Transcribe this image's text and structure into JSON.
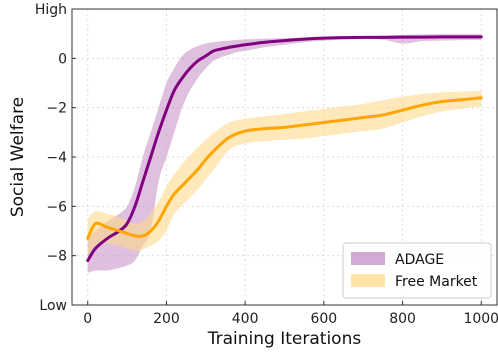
{
  "chart_data": {
    "type": "line",
    "xlabel": "Training Iterations",
    "ylabel": "Social Welfare",
    "xlim": [
      -40,
      1040
    ],
    "ylim": [
      -10,
      2
    ],
    "x_ticks": [
      0,
      200,
      400,
      600,
      800,
      1000
    ],
    "y_ticks": [
      {
        "value": 2,
        "label": "High"
      },
      {
        "value": 0,
        "label": "0"
      },
      {
        "value": -2,
        "label": "−2"
      },
      {
        "value": -4,
        "label": "−4"
      },
      {
        "value": -6,
        "label": "−6"
      },
      {
        "value": -8,
        "label": "−8"
      },
      {
        "value": -10,
        "label": "Low"
      }
    ],
    "grid": true,
    "legend_position": "bottom-right",
    "series": [
      {
        "name": "ADAGE",
        "color": "#800080",
        "band_color": "#c58ec5",
        "x": [
          0,
          20,
          50,
          80,
          100,
          120,
          140,
          160,
          180,
          200,
          220,
          240,
          260,
          280,
          300,
          320,
          340,
          360,
          380,
          400,
          450,
          500,
          550,
          600,
          650,
          700,
          750,
          800,
          850,
          900,
          950,
          1000
        ],
        "y": [
          -8.2,
          -7.7,
          -7.3,
          -7.0,
          -6.7,
          -6.0,
          -5.0,
          -4.0,
          -3.0,
          -2.1,
          -1.3,
          -0.8,
          -0.4,
          -0.1,
          0.1,
          0.3,
          0.38,
          0.45,
          0.5,
          0.55,
          0.65,
          0.72,
          0.78,
          0.82,
          0.84,
          0.85,
          0.85,
          0.86,
          0.86,
          0.87,
          0.87,
          0.87
        ],
        "upper": [
          -7.3,
          -7.0,
          -6.6,
          -6.3,
          -6.0,
          -5.2,
          -4.0,
          -3.0,
          -2.0,
          -1.0,
          -0.4,
          0.1,
          0.35,
          0.5,
          0.6,
          0.65,
          0.7,
          0.72,
          0.75,
          0.77,
          0.8,
          0.82,
          0.85,
          0.87,
          0.88,
          0.9,
          0.92,
          0.95,
          0.97,
          0.98,
          0.98,
          0.98
        ],
        "lower": [
          -8.7,
          -8.6,
          -8.6,
          -8.5,
          -8.4,
          -8.2,
          -7.6,
          -7.0,
          -5.0,
          -4.0,
          -3.0,
          -2.0,
          -1.3,
          -0.8,
          -0.4,
          -0.1,
          0.05,
          0.15,
          0.25,
          0.3,
          0.45,
          0.55,
          0.65,
          0.72,
          0.76,
          0.78,
          0.76,
          0.6,
          0.7,
          0.72,
          0.74,
          0.75
        ]
      },
      {
        "name": "Free Market",
        "color": "#ffa500",
        "band_color": "#ffd98a",
        "x": [
          0,
          20,
          50,
          80,
          100,
          120,
          140,
          160,
          180,
          200,
          220,
          250,
          280,
          300,
          330,
          360,
          400,
          450,
          500,
          550,
          600,
          650,
          700,
          750,
          800,
          850,
          900,
          950,
          1000
        ],
        "y": [
          -7.3,
          -6.7,
          -6.85,
          -7.0,
          -7.1,
          -7.2,
          -7.2,
          -7.0,
          -6.6,
          -6.0,
          -5.5,
          -5.0,
          -4.5,
          -4.1,
          -3.6,
          -3.2,
          -2.95,
          -2.85,
          -2.8,
          -2.7,
          -2.6,
          -2.5,
          -2.4,
          -2.3,
          -2.1,
          -1.9,
          -1.75,
          -1.68,
          -1.6
        ],
        "upper": [
          -6.5,
          -6.2,
          -6.3,
          -6.45,
          -6.6,
          -6.7,
          -6.6,
          -6.3,
          -5.8,
          -5.2,
          -4.7,
          -4.1,
          -3.6,
          -3.3,
          -2.9,
          -2.6,
          -2.45,
          -2.35,
          -2.25,
          -2.15,
          -2.05,
          -1.95,
          -1.85,
          -1.7,
          -1.55,
          -1.45,
          -1.38,
          -1.35,
          -1.32
        ],
        "lower": [
          -8.0,
          -7.6,
          -7.5,
          -7.6,
          -7.7,
          -7.8,
          -7.75,
          -7.6,
          -7.4,
          -7.0,
          -6.3,
          -5.8,
          -5.3,
          -4.9,
          -4.3,
          -3.7,
          -3.45,
          -3.35,
          -3.3,
          -3.25,
          -3.15,
          -3.05,
          -2.95,
          -2.85,
          -2.6,
          -2.35,
          -2.15,
          -2.05,
          -1.95
        ]
      }
    ]
  }
}
